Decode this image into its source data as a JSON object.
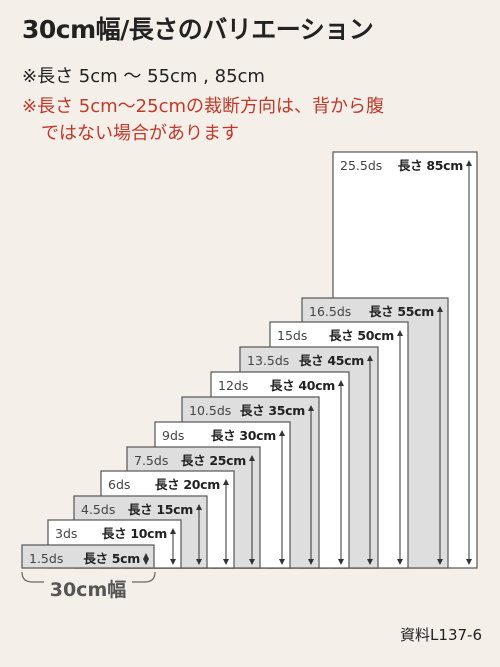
{
  "header": {
    "title": "30cm幅/長さのバリエーション",
    "range_note": "※長さ 5cm 〜 55cm , 85cm",
    "warning_line1": "※長さ 5cm〜25cmの裁断方向は、背から腹",
    "warning_line2": "ではない場合があります"
  },
  "swatches": [
    {
      "ds": "1.5ds",
      "length": "長さ 5cm",
      "shade": "gray"
    },
    {
      "ds": "3ds",
      "length": "長さ 10cm",
      "shade": "white"
    },
    {
      "ds": "4.5ds",
      "length": "長さ 15cm",
      "shade": "gray"
    },
    {
      "ds": "6ds",
      "length": "長さ 20cm",
      "shade": "white"
    },
    {
      "ds": "7.5ds",
      "length": "長さ 25cm",
      "shade": "gray"
    },
    {
      "ds": "9ds",
      "length": "長さ 30cm",
      "shade": "white"
    },
    {
      "ds": "10.5ds",
      "length": "長さ 35cm",
      "shade": "gray"
    },
    {
      "ds": "12ds",
      "length": "長さ 40cm",
      "shade": "white"
    },
    {
      "ds": "13.5ds",
      "length": "長さ 45cm",
      "shade": "gray"
    },
    {
      "ds": "15ds",
      "length": "長さ 50cm",
      "shade": "white"
    },
    {
      "ds": "16.5ds",
      "length": "長さ 55cm",
      "shade": "gray"
    },
    {
      "ds": "25.5ds",
      "length": "長さ 85cm",
      "shade": "white"
    }
  ],
  "width_label": "30cm幅",
  "colors": {
    "gray": "#dedede",
    "white": "#ffffff",
    "border": "#555555",
    "warning": "#c0392b"
  },
  "footer": {
    "ref": "資料L137-6"
  }
}
